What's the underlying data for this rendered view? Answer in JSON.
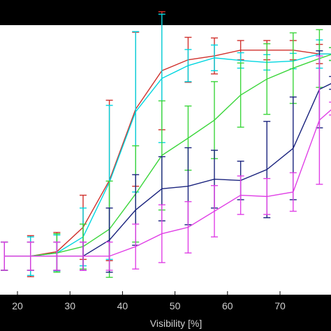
{
  "chart_data": {
    "type": "line",
    "xlabel": "Visibility [%]",
    "ylabel": "",
    "title": "",
    "xlim": [
      15,
      80
    ],
    "ylim": [
      -0.6,
      3.6
    ],
    "grid": false,
    "x": [
      17.5,
      22.5,
      27.5,
      32.5,
      37.5,
      42.5,
      47.5,
      52.5,
      57.5,
      62.5,
      67.5,
      72.5,
      77.5,
      80
    ],
    "x_ticks": [
      "20",
      "30",
      "40",
      "50",
      "60",
      "70"
    ],
    "x_tick_values": [
      20,
      30,
      40,
      50,
      60,
      70
    ],
    "series": [
      {
        "color": "#d0312d",
        "values": [
          0.0,
          0.0,
          0.07,
          0.45,
          1.18,
          2.29,
          2.89,
          3.06,
          3.12,
          3.21,
          3.21,
          3.21,
          3.15,
          3.15
        ],
        "errors": [
          0.22,
          0.32,
          0.3,
          0.5,
          1.25,
          1.2,
          0.92,
          0.35,
          0.28,
          0.15,
          0.15,
          0.15,
          0.15,
          0.1
        ]
      },
      {
        "color": "#00d6e0",
        "values": [
          0.0,
          0.0,
          0.05,
          0.3,
          1.15,
          2.25,
          2.77,
          2.97,
          3.09,
          3.05,
          3.02,
          3.04,
          3.15,
          3.15
        ],
        "errors": [
          0.22,
          0.3,
          0.28,
          0.45,
          1.2,
          1.25,
          1.0,
          0.25,
          0.2,
          0.12,
          0.12,
          0.12,
          0.22,
          0.1
        ]
      },
      {
        "color": "#3bd63b",
        "values": [
          0.0,
          0.0,
          0.05,
          0.15,
          0.42,
          0.97,
          1.57,
          1.84,
          2.12,
          2.51,
          2.76,
          2.93,
          3.08,
          3.15
        ],
        "errors": [
          0.22,
          0.22,
          0.3,
          0.35,
          0.75,
          0.75,
          0.85,
          0.5,
          0.6,
          0.5,
          0.55,
          0.55,
          0.45,
          0.1
        ]
      },
      {
        "color": "#1a237e",
        "values": [
          0.0,
          0.0,
          0.0,
          0.0,
          0.25,
          0.72,
          1.05,
          1.09,
          1.2,
          1.18,
          1.35,
          1.68,
          2.6,
          2.7
        ],
        "errors": [
          0.22,
          0.22,
          0.22,
          0.22,
          0.5,
          0.55,
          0.5,
          0.6,
          0.45,
          0.3,
          0.75,
          0.8,
          0.6,
          0.1
        ]
      },
      {
        "color": "#e040e6",
        "values": [
          0.0,
          0.0,
          0.0,
          0.0,
          0.0,
          0.15,
          0.35,
          0.45,
          0.7,
          0.95,
          0.93,
          1.0,
          2.12,
          2.3
        ],
        "errors": [
          0.22,
          0.22,
          0.22,
          0.22,
          0.22,
          0.35,
          0.45,
          0.4,
          0.4,
          0.3,
          0.28,
          0.3,
          1.0,
          0.1
        ]
      }
    ]
  }
}
